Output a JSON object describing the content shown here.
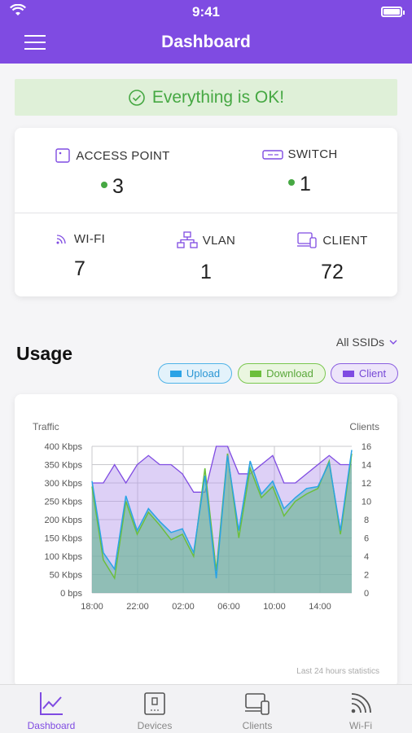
{
  "status_bar": {
    "time": "9:41"
  },
  "header": {
    "title": "Dashboard"
  },
  "banner": {
    "text": "Everything is OK!"
  },
  "stats": {
    "access_point": {
      "label": "ACCESS POINT",
      "value": "3"
    },
    "switch": {
      "label": "SWITCH",
      "value": "1"
    },
    "wifi": {
      "label": "WI-FI",
      "value": "7"
    },
    "vlan": {
      "label": "VLAN",
      "value": "1"
    },
    "client": {
      "label": "CLIENT",
      "value": "72"
    }
  },
  "usage": {
    "title": "Usage",
    "ssid_filter": "All SSIDs",
    "legend": {
      "upload": "Upload",
      "download": "Download",
      "client": "Client"
    },
    "footer": "Last 24 hours statistics"
  },
  "colors": {
    "primary": "#7f4be2",
    "ok_green": "#46a843",
    "upload": "#2aa3e6",
    "download": "#6cbf3c",
    "client": "#7f4be2"
  },
  "chart_data": {
    "type": "area",
    "ylabel": "Traffic",
    "y2label": "Clients",
    "ylim": [
      0,
      400
    ],
    "y2lim": [
      0,
      16
    ],
    "yticks": [
      "400 Kbps",
      "350 Kbps",
      "300 Kbps",
      "250 Kbps",
      "200 Kbps",
      "150 Kbps",
      "100 Kbps",
      "50 Kbps",
      "0 bps"
    ],
    "y2ticks": [
      "16",
      "14",
      "12",
      "10",
      "8",
      "6",
      "4",
      "2",
      "0"
    ],
    "xticks": [
      "18:00",
      "22:00",
      "02:00",
      "06:00",
      "10:00",
      "14:00"
    ],
    "x": [
      0,
      1,
      2,
      3,
      4,
      5,
      6,
      7,
      8,
      9,
      10,
      11,
      12,
      13,
      14,
      15,
      16,
      17,
      18,
      19,
      20,
      21,
      22,
      23
    ],
    "series": [
      {
        "name": "Client",
        "axis": "right",
        "values": [
          12,
          12,
          14,
          12,
          14,
          15,
          14,
          14,
          13,
          11,
          11,
          16,
          16,
          13,
          13,
          14,
          15,
          12,
          12,
          13,
          14,
          15,
          14,
          14
        ]
      },
      {
        "name": "Upload",
        "axis": "left",
        "values": [
          305,
          110,
          65,
          265,
          170,
          230,
          195,
          165,
          175,
          110,
          320,
          40,
          375,
          170,
          360,
          270,
          305,
          230,
          260,
          285,
          290,
          355,
          170,
          390
        ]
      },
      {
        "name": "Download",
        "axis": "left",
        "values": [
          290,
          90,
          40,
          250,
          160,
          220,
          185,
          145,
          160,
          100,
          340,
          60,
          380,
          150,
          340,
          260,
          290,
          210,
          250,
          270,
          285,
          360,
          160,
          380
        ]
      }
    ]
  },
  "tabs": [
    {
      "label": "Dashboard",
      "icon": "chart-icon",
      "active": true
    },
    {
      "label": "Devices",
      "icon": "device-icon",
      "active": false
    },
    {
      "label": "Clients",
      "icon": "clients-icon",
      "active": false
    },
    {
      "label": "Wi-Fi",
      "icon": "wifi-icon",
      "active": false
    }
  ]
}
